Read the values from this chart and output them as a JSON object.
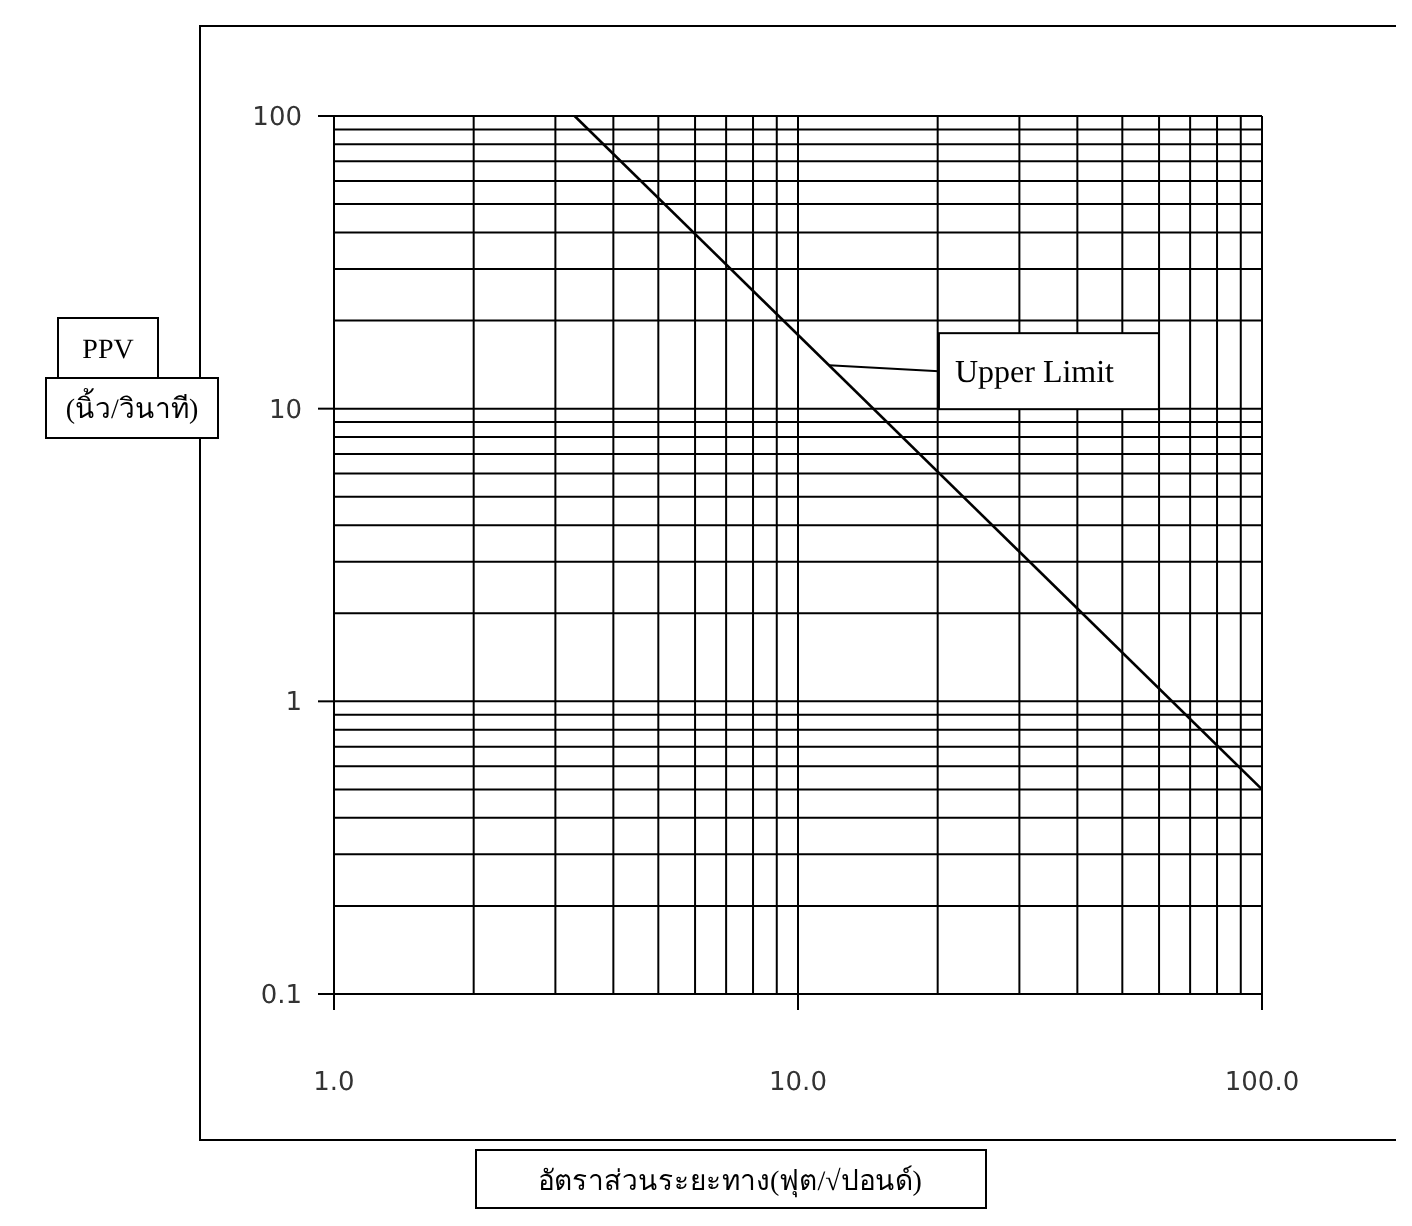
{
  "chart_data": {
    "type": "line",
    "xlabel": "อัตราส่วนระยะทาง(ฟุต/√ปอนด์)",
    "ylabel": "PPV\n(นิ้ว/วินาที)",
    "log": "xy",
    "xlim": [
      1,
      100
    ],
    "ylim": [
      0.1,
      100
    ],
    "xticks": [
      {
        "value": 1,
        "label": "1.0"
      },
      {
        "value": 10,
        "label": "10.0"
      },
      {
        "value": 100,
        "label": "100.0"
      }
    ],
    "yticks": [
      0.1,
      1,
      10,
      100
    ],
    "grid": true,
    "line_style": "solid",
    "series": [
      {
        "color": "#000000",
        "x": [
          3.3,
          100
        ],
        "values": [
          100,
          0.5
        ]
      }
    ],
    "annotations": [
      "Upper Limit"
    ]
  }
}
